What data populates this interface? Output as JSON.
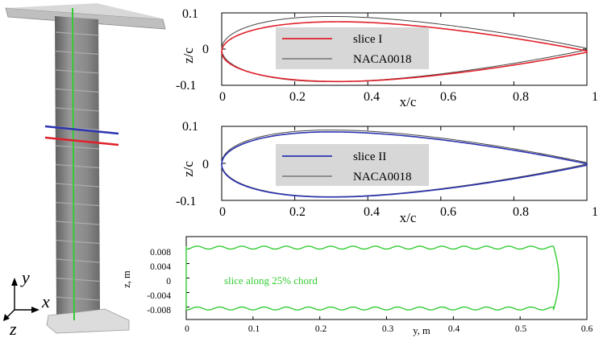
{
  "colors": {
    "slice_I": "#e0202a",
    "slice_II": "#2c34b0",
    "naca": "#444444",
    "slice_25": "#33cc33",
    "legend_bg": "#d7d7d7",
    "model_body": "#8a8a8a"
  },
  "axes3d": {
    "y_label": "y",
    "x_label": "x",
    "z_label": "z"
  },
  "chart_data": [
    {
      "type": "line",
      "xlabel": "x/c",
      "ylabel": "z/c",
      "xlim": [
        0,
        1
      ],
      "ylim": [
        -0.1,
        0.1
      ],
      "x_ticks": [
        "0",
        "0.2",
        "0.4",
        "0.6",
        "0.8",
        "1"
      ],
      "y_ticks": [
        "0.1",
        "0",
        "-0.1"
      ],
      "legend_position": "center",
      "series": [
        {
          "name": "slice I",
          "color": "#e0202a",
          "thickness_ratio": 0.165,
          "camber_offset": -0.007,
          "max_thickness_x": 0.32
        },
        {
          "name": "NACA0018",
          "color": "#444444",
          "thickness_ratio": 0.18,
          "camber_offset": 0.0,
          "max_thickness_x": 0.3
        }
      ]
    },
    {
      "type": "line",
      "xlabel": "x/c",
      "ylabel": "z/c",
      "xlim": [
        0,
        1
      ],
      "ylim": [
        -0.1,
        0.1
      ],
      "x_ticks": [
        "0",
        "0.2",
        "0.4",
        "0.6",
        "0.8",
        "1"
      ],
      "y_ticks": [
        "0.1",
        "0",
        "-0.1"
      ],
      "legend_position": "center",
      "series": [
        {
          "name": "slice II",
          "color": "#2c34b0",
          "thickness_ratio": 0.176,
          "camber_offset": -0.003,
          "max_thickness_x": 0.3
        },
        {
          "name": "NACA0018",
          "color": "#444444",
          "thickness_ratio": 0.18,
          "camber_offset": 0.0,
          "max_thickness_x": 0.3
        }
      ]
    },
    {
      "type": "line",
      "xlabel": "y, m",
      "ylabel": "z, m",
      "xlim": [
        0,
        0.6
      ],
      "ylim": [
        -0.01,
        0.01
      ],
      "x_ticks": [
        "0",
        "0.1",
        "0.2",
        "0.3",
        "0.4",
        "0.5",
        "0.6"
      ],
      "y_ticks": [
        "0.008",
        "0.004",
        "0",
        "-0.004",
        "-0.008"
      ],
      "annotation": "slice along 25% chord",
      "series": [
        {
          "name": "slice along 25% chord",
          "color": "#33cc33",
          "z_upper": 0.0088,
          "z_lower": -0.0088,
          "wave_amplitude": 0.0008,
          "wave_period": 0.0333,
          "span_end": 0.55
        }
      ]
    }
  ]
}
